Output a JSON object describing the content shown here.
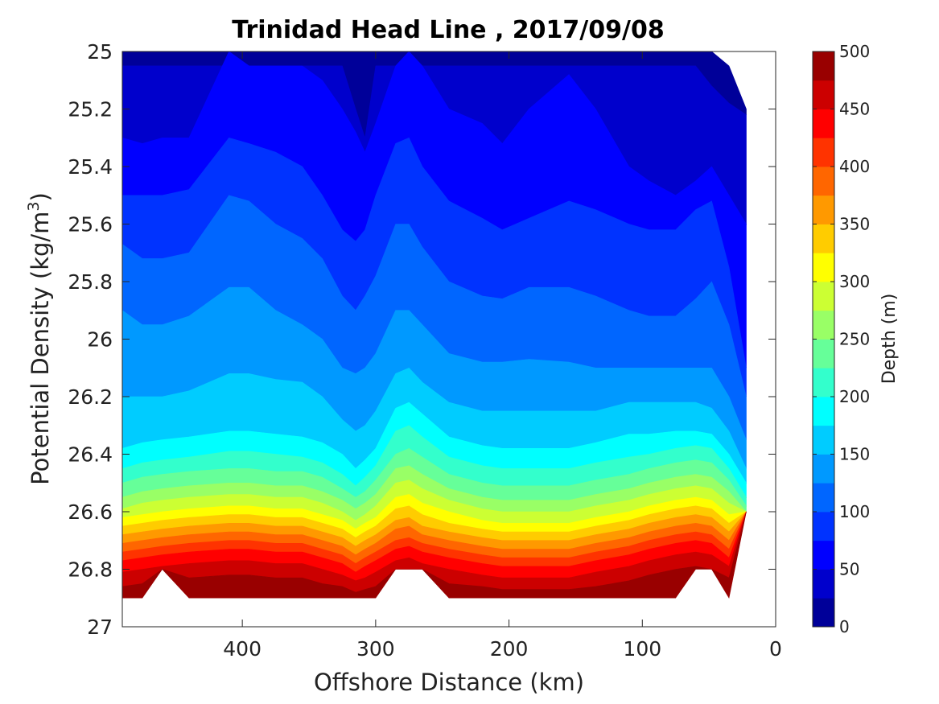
{
  "chart_data": {
    "type": "contourf",
    "title": "Trinidad Head Line , 2017/09/08",
    "xlabel": "Offshore Distance (km)",
    "ylabel_main": "Potential Density (kg/m",
    "ylabel_sup": "3",
    "ylabel_close": ")",
    "xlim": [
      490,
      0
    ],
    "x_reversed": true,
    "ylim": [
      25,
      27
    ],
    "y_reversed": true,
    "xticks": [
      400,
      300,
      200,
      100,
      0
    ],
    "yticks": [
      25,
      25.2,
      25.4,
      25.6,
      25.8,
      26,
      26.2,
      26.4,
      26.6,
      26.8,
      27
    ],
    "grid": false,
    "colorbar": {
      "label": "Depth (m)",
      "range": [
        0,
        500
      ],
      "levels_step": 25,
      "ticks": [
        0,
        50,
        100,
        150,
        200,
        250,
        300,
        350,
        400,
        450,
        500
      ],
      "colormap": "jet"
    },
    "stations_km": [
      490,
      475,
      460,
      440,
      410,
      395,
      375,
      355,
      340,
      325,
      315,
      308,
      300,
      285,
      275,
      265,
      245,
      220,
      205,
      185,
      155,
      135,
      110,
      95,
      75,
      60,
      48,
      35,
      22
    ],
    "bottom_density": [
      26.9,
      26.9,
      26.8,
      26.9,
      26.9,
      26.9,
      26.9,
      26.9,
      26.9,
      26.9,
      26.9,
      26.9,
      26.9,
      26.8,
      26.8,
      26.8,
      26.9,
      26.9,
      26.9,
      26.9,
      26.9,
      26.9,
      26.9,
      26.9,
      26.9,
      26.8,
      26.8,
      26.9,
      26.6
    ],
    "surface_density": [
      25,
      25,
      25,
      25,
      25,
      25,
      25,
      25,
      25,
      25,
      25,
      25,
      25,
      25,
      25,
      25,
      25,
      25,
      25,
      25,
      25,
      25,
      25,
      25,
      25,
      25,
      25,
      25.05,
      25.2
    ],
    "depth_contours": [
      {
        "depth": 25,
        "density": [
          25.05,
          25.05,
          25.05,
          25.05,
          25.05,
          25.05,
          25.05,
          25.05,
          25.05,
          25.05,
          25.2,
          25.3,
          25.05,
          25.05,
          25.05,
          25.05,
          25.05,
          25.05,
          25.05,
          25.05,
          25.05,
          25.05,
          25.05,
          25.05,
          25.05,
          25.05,
          25.12,
          25.18,
          25.22
        ]
      },
      {
        "depth": 50,
        "density": [
          25.3,
          25.32,
          25.3,
          25.3,
          25.0,
          25.05,
          25.05,
          25.05,
          25.1,
          25.2,
          25.28,
          25.35,
          25.25,
          25.05,
          25.0,
          25.05,
          25.2,
          25.25,
          25.32,
          25.2,
          25.08,
          25.2,
          25.4,
          25.45,
          25.5,
          25.45,
          25.4,
          25.5,
          25.6
        ]
      },
      {
        "depth": 75,
        "density": [
          25.5,
          25.5,
          25.5,
          25.48,
          25.3,
          25.32,
          25.35,
          25.4,
          25.5,
          25.62,
          25.66,
          25.62,
          25.5,
          25.32,
          25.3,
          25.4,
          25.52,
          25.58,
          25.62,
          25.58,
          25.52,
          25.55,
          25.6,
          25.62,
          25.62,
          25.55,
          25.52,
          25.75,
          26.1
        ]
      },
      {
        "depth": 100,
        "density": [
          25.67,
          25.72,
          25.72,
          25.7,
          25.5,
          25.52,
          25.6,
          25.65,
          25.72,
          25.85,
          25.9,
          25.85,
          25.78,
          25.6,
          25.6,
          25.68,
          25.8,
          25.85,
          25.86,
          25.82,
          25.82,
          25.85,
          25.9,
          25.92,
          25.92,
          25.86,
          25.8,
          25.95,
          26.2
        ]
      },
      {
        "depth": 125,
        "density": [
          25.9,
          25.95,
          25.95,
          25.92,
          25.82,
          25.82,
          25.9,
          25.95,
          26.0,
          26.1,
          26.12,
          26.1,
          26.05,
          25.9,
          25.9,
          25.95,
          26.05,
          26.08,
          26.08,
          26.07,
          26.08,
          26.1,
          26.1,
          26.1,
          26.1,
          26.1,
          26.1,
          26.2,
          26.35
        ]
      },
      {
        "depth": 150,
        "density": [
          26.2,
          26.2,
          26.2,
          26.18,
          26.12,
          26.12,
          26.14,
          26.15,
          26.2,
          26.28,
          26.32,
          26.3,
          26.25,
          26.12,
          26.1,
          26.15,
          26.22,
          26.25,
          26.25,
          26.25,
          26.25,
          26.25,
          26.22,
          26.22,
          26.22,
          26.22,
          26.24,
          26.32,
          26.45
        ]
      },
      {
        "depth": 175,
        "density": [
          26.38,
          26.36,
          26.35,
          26.34,
          26.32,
          26.32,
          26.33,
          26.34,
          26.36,
          26.4,
          26.45,
          26.42,
          26.38,
          26.24,
          26.22,
          26.26,
          26.34,
          26.37,
          26.38,
          26.38,
          26.38,
          26.36,
          26.33,
          26.33,
          26.32,
          26.32,
          26.33,
          26.4,
          26.5
        ]
      },
      {
        "depth": 200,
        "density": [
          26.45,
          26.43,
          26.42,
          26.41,
          26.39,
          26.39,
          26.4,
          26.41,
          26.43,
          26.47,
          26.51,
          26.48,
          26.44,
          26.32,
          26.3,
          26.34,
          26.41,
          26.44,
          26.45,
          26.45,
          26.45,
          26.43,
          26.41,
          26.4,
          26.38,
          26.37,
          26.38,
          26.45,
          26.55
        ]
      },
      {
        "depth": 225,
        "density": [
          26.5,
          26.48,
          26.47,
          26.46,
          26.45,
          26.45,
          26.46,
          26.46,
          26.48,
          26.52,
          26.55,
          26.53,
          26.49,
          26.4,
          26.38,
          26.41,
          26.47,
          26.5,
          26.51,
          26.51,
          26.51,
          26.49,
          26.47,
          26.45,
          26.43,
          26.42,
          26.43,
          26.49,
          26.58
        ]
      },
      {
        "depth": 250,
        "density": [
          26.55,
          26.53,
          26.52,
          26.51,
          26.5,
          26.5,
          26.51,
          26.51,
          26.53,
          26.56,
          26.59,
          26.57,
          26.54,
          26.45,
          26.44,
          26.47,
          26.52,
          26.55,
          26.56,
          26.56,
          26.56,
          26.54,
          26.52,
          26.5,
          26.48,
          26.47,
          26.48,
          26.53,
          26.6
        ]
      },
      {
        "depth": 275,
        "density": [
          26.59,
          26.57,
          26.56,
          26.55,
          26.54,
          26.54,
          26.55,
          26.55,
          26.57,
          26.6,
          26.63,
          26.61,
          26.58,
          26.5,
          26.49,
          26.52,
          26.56,
          26.59,
          26.6,
          26.6,
          26.6,
          26.58,
          26.56,
          26.54,
          26.52,
          26.51,
          26.52,
          26.57,
          26.63
        ]
      },
      {
        "depth": 300,
        "density": [
          26.62,
          26.61,
          26.6,
          26.59,
          26.58,
          26.58,
          26.59,
          26.59,
          26.61,
          26.63,
          26.66,
          26.64,
          26.62,
          26.55,
          26.54,
          26.57,
          26.6,
          26.63,
          26.64,
          26.64,
          26.64,
          26.62,
          26.6,
          26.58,
          26.56,
          26.55,
          26.56,
          26.61,
          26.66
        ]
      },
      {
        "depth": 325,
        "density": [
          26.65,
          26.64,
          26.63,
          26.62,
          26.61,
          26.61,
          26.62,
          26.62,
          26.64,
          26.66,
          26.69,
          26.67,
          26.65,
          26.59,
          26.58,
          26.61,
          26.64,
          26.66,
          26.67,
          26.67,
          26.67,
          26.65,
          26.63,
          26.61,
          26.59,
          26.58,
          26.59,
          26.64,
          26.69
        ]
      },
      {
        "depth": 350,
        "density": [
          26.68,
          26.67,
          26.66,
          26.65,
          26.64,
          26.64,
          26.65,
          26.65,
          26.67,
          26.69,
          26.72,
          26.7,
          26.68,
          26.63,
          26.62,
          26.65,
          26.67,
          26.69,
          26.7,
          26.7,
          26.7,
          26.68,
          26.66,
          26.64,
          26.62,
          26.61,
          26.62,
          26.67,
          26.72
        ]
      },
      {
        "depth": 375,
        "density": [
          26.71,
          26.7,
          26.69,
          26.68,
          26.67,
          26.67,
          26.68,
          26.68,
          26.7,
          26.72,
          26.75,
          26.73,
          26.71,
          26.66,
          26.65,
          26.68,
          26.7,
          26.72,
          26.73,
          26.73,
          26.73,
          26.71,
          26.69,
          26.67,
          26.65,
          26.64,
          26.65,
          26.7,
          26.74
        ]
      },
      {
        "depth": 400,
        "density": [
          26.74,
          26.73,
          26.72,
          26.71,
          26.7,
          26.7,
          26.71,
          26.71,
          26.73,
          26.75,
          26.78,
          26.76,
          26.74,
          26.7,
          26.69,
          26.71,
          26.73,
          26.75,
          26.76,
          26.76,
          26.76,
          26.74,
          26.72,
          26.7,
          26.68,
          26.67,
          26.68,
          26.73,
          26.76
        ]
      },
      {
        "depth": 425,
        "density": [
          26.77,
          26.76,
          26.75,
          26.74,
          26.73,
          26.73,
          26.74,
          26.74,
          26.76,
          26.78,
          26.81,
          26.79,
          26.77,
          26.73,
          26.72,
          26.74,
          26.76,
          26.78,
          26.79,
          26.79,
          26.79,
          26.77,
          26.75,
          26.73,
          26.71,
          26.7,
          26.71,
          26.76,
          26.78
        ]
      },
      {
        "depth": 450,
        "density": [
          26.81,
          26.8,
          26.79,
          26.78,
          26.77,
          26.77,
          26.78,
          26.78,
          26.8,
          26.82,
          26.84,
          26.83,
          26.81,
          26.77,
          26.76,
          26.78,
          26.8,
          26.82,
          26.83,
          26.83,
          26.83,
          26.81,
          26.79,
          26.77,
          26.75,
          26.74,
          26.75,
          26.79,
          26.8
        ]
      },
      {
        "depth": 475,
        "density": [
          26.86,
          26.85,
          26.84,
          26.83,
          26.82,
          26.82,
          26.83,
          26.83,
          26.85,
          26.86,
          26.88,
          26.87,
          26.86,
          26.82,
          26.81,
          26.83,
          26.85,
          26.86,
          26.87,
          26.87,
          26.87,
          26.86,
          26.84,
          26.82,
          26.8,
          26.79,
          26.8,
          26.83,
          26.82
        ]
      }
    ]
  }
}
